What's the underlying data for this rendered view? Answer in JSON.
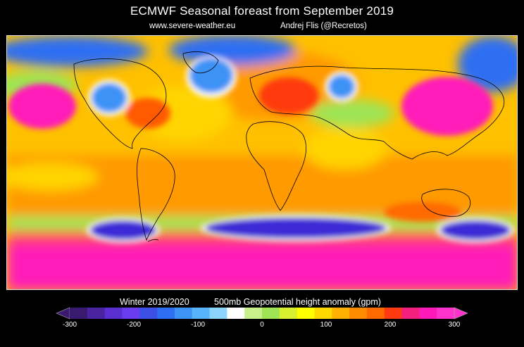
{
  "header": {
    "title": "ECMWF Seasonal foreast from September 2019",
    "website": "www.severe-weather.eu",
    "author": "Andrej Flis (@Recretos)"
  },
  "footer": {
    "period": "Winter 2019/2020",
    "variable": "500mb Geopotential height anomaly (gpm)"
  },
  "colorbar": {
    "ticks": [
      "-300",
      "-200",
      "-100",
      "0",
      "100",
      "200",
      "300"
    ],
    "colors": [
      "#3a1a6e",
      "#4a24a0",
      "#5a2ed0",
      "#6a3ef0",
      "#3c4fe6",
      "#2e6ef2",
      "#3d92f6",
      "#58b4fa",
      "#8cd4fb",
      "#ffffff",
      "#c8f08a",
      "#9ee455",
      "#d8f030",
      "#ffff00",
      "#ffd800",
      "#ffb000",
      "#ff8c00",
      "#ff6a00",
      "#ff3a10",
      "#f42080",
      "#ff1ab8",
      "#ff33cc"
    ]
  },
  "map": {
    "colors": {
      "background": "#ffc000",
      "positive_strong": "#ff1ab8",
      "positive": "#ff3a10",
      "warm": "#ff8a00",
      "neutral_positive": "#ffe600",
      "near_zero": "#9ee455",
      "negative": "#2e6ef2",
      "negative_strong": "#3d2cd6",
      "contour": "#ffffff",
      "coast": "#000000"
    }
  }
}
